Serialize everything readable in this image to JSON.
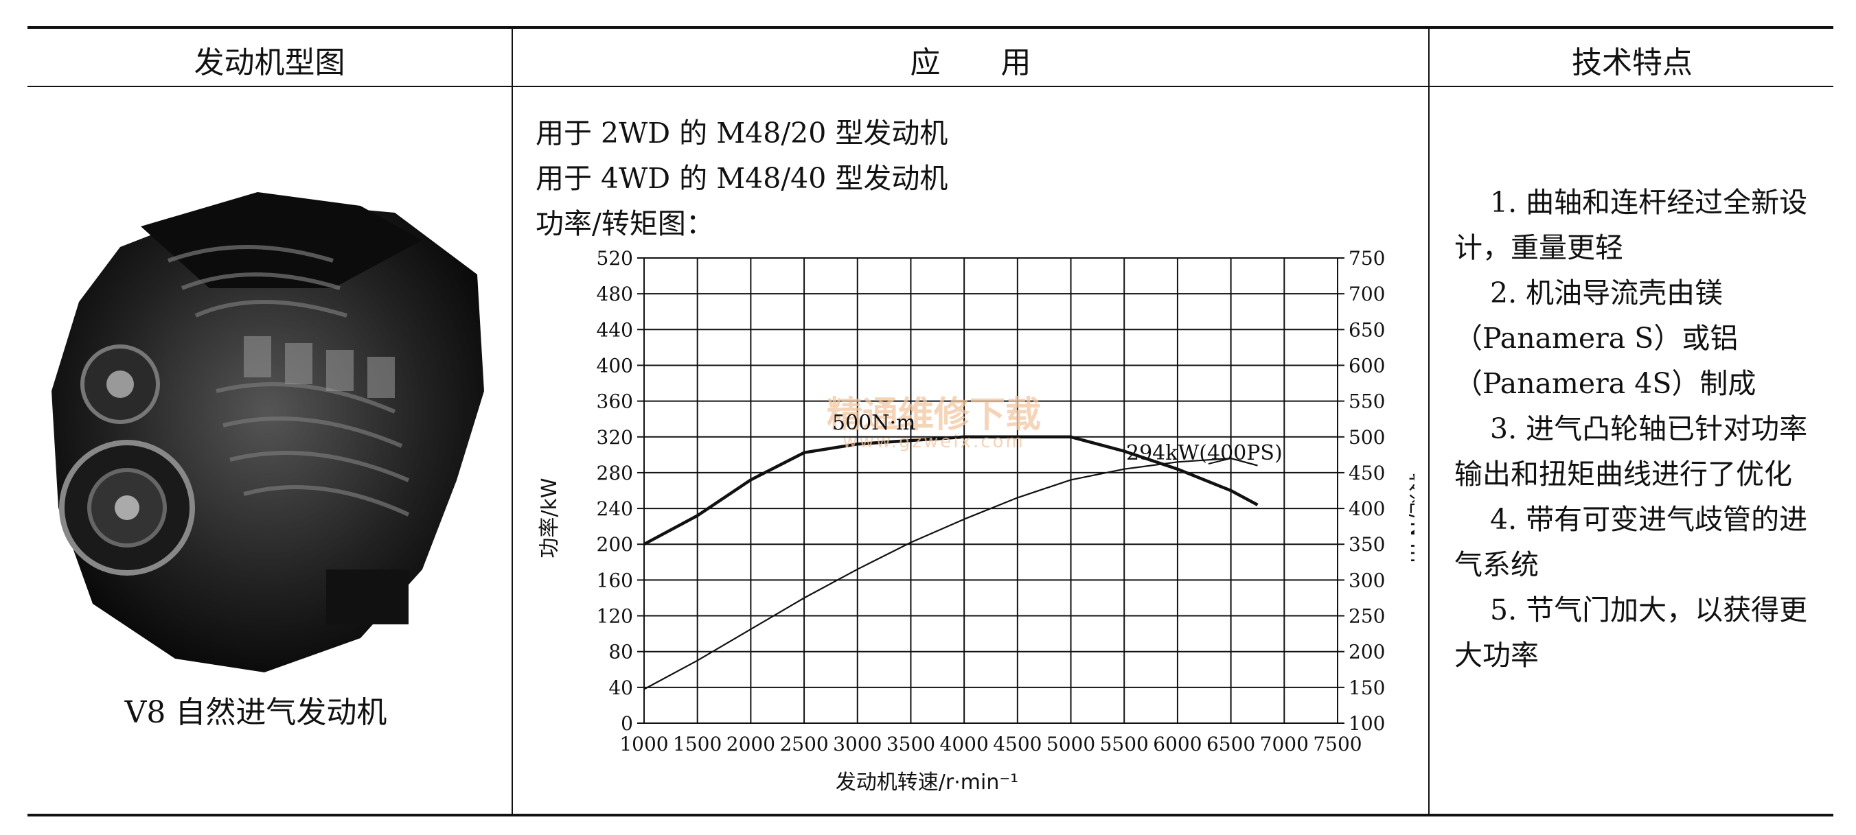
{
  "table": {
    "headers": [
      "发动机型图",
      "应　　用",
      "技术特点"
    ],
    "engine_caption": "V8 自然进气发动机",
    "application_lines": [
      "用于 2WD 的 M48/20 型发动机",
      "用于 4WD 的 M48/40 型发动机",
      "功率/转矩图："
    ],
    "features": [
      "1. 曲轴和连杆经过全新设计，重量更轻",
      "2. 机油导流壳由镁（Panamera S）或铝（Panamera 4S）制成",
      "3. 进气凸轮轴已针对功率输出和扭矩曲线进行了优化",
      "4. 带有可变进气歧管的进气系统",
      "5. 节气门加大，以获得更大功率"
    ]
  },
  "watermark": {
    "line1": "精通维修下载",
    "line2": "www.gzweix.com"
  },
  "chart_data": {
    "type": "line",
    "xlabel": "发动机转速/r·min⁻¹",
    "ylabel_left": "功率/kW",
    "ylabel_right": "转矩/N·m",
    "x_ticks": [
      1000,
      1500,
      2000,
      2500,
      3000,
      3500,
      4000,
      4500,
      5000,
      5500,
      6000,
      6500,
      7000,
      7500
    ],
    "xlim": [
      1000,
      7500
    ],
    "y_left_ticks": [
      0,
      40,
      80,
      120,
      160,
      200,
      240,
      280,
      320,
      360,
      400,
      440,
      480,
      520
    ],
    "y_left_lim": [
      0,
      520
    ],
    "y_right_ticks": [
      100,
      150,
      200,
      250,
      300,
      350,
      400,
      450,
      500,
      550,
      600,
      650,
      700,
      750
    ],
    "y_right_lim": [
      100,
      750
    ],
    "grid": true,
    "annotations": [
      "500N·m",
      "294kW(400PS)"
    ],
    "series": [
      {
        "axis": "right",
        "values": [
          [
            1000,
            350
          ],
          [
            1500,
            390
          ],
          [
            2000,
            440
          ],
          [
            2500,
            478
          ],
          [
            3000,
            490
          ],
          [
            3500,
            495
          ],
          [
            4000,
            500
          ],
          [
            4500,
            500
          ],
          [
            5000,
            500
          ],
          [
            5500,
            480
          ],
          [
            6000,
            455
          ],
          [
            6500,
            425
          ],
          [
            6750,
            405
          ]
        ]
      },
      {
        "axis": "left",
        "values": [
          [
            1000,
            38
          ],
          [
            1500,
            70
          ],
          [
            2000,
            105
          ],
          [
            2500,
            140
          ],
          [
            3000,
            172
          ],
          [
            3500,
            202
          ],
          [
            4000,
            228
          ],
          [
            4500,
            252
          ],
          [
            5000,
            272
          ],
          [
            5500,
            284
          ],
          [
            6000,
            292
          ],
          [
            6250,
            294
          ],
          [
            6500,
            296
          ],
          [
            6750,
            288
          ]
        ]
      }
    ]
  }
}
